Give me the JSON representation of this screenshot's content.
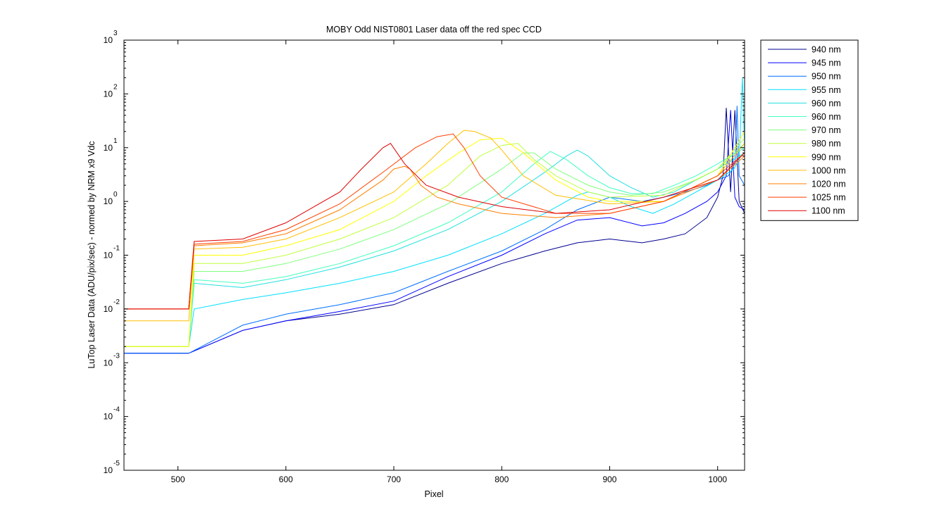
{
  "chart_data": {
    "type": "line",
    "title": "MOBY Odd NIST0801  Laser data off the red spec CCD",
    "xlabel": "Pixel",
    "ylabel": "LuTop Laser Data (ADU/pix/sec) - normed by NRM x9 Vdc",
    "xlim": [
      450,
      1025
    ],
    "ylim": [
      1e-05,
      1000
    ],
    "yscale": "log",
    "x_ticks": [
      500,
      600,
      700,
      800,
      900,
      1000
    ],
    "y_tick_exponents": [
      -5,
      -4,
      -3,
      -2,
      -1,
      0,
      1,
      2,
      3
    ],
    "y_tick_base": "10",
    "grid": false,
    "legend_position": "outside-right",
    "series": [
      {
        "name": "940 nm",
        "color": "#00008F",
        "x": [
          450,
          510,
          560,
          600,
          650,
          700,
          750,
          800,
          840,
          870,
          900,
          930,
          950,
          970,
          990,
          1000,
          1005,
          1008,
          1012,
          1016,
          1020,
          1025
        ],
        "y": [
          0.0015,
          0.0015,
          0.004,
          0.006,
          0.008,
          0.012,
          0.03,
          0.07,
          0.12,
          0.17,
          0.2,
          0.17,
          0.2,
          0.25,
          0.5,
          1.2,
          3,
          55,
          1.5,
          50,
          1,
          0.6
        ]
      },
      {
        "name": "945 nm",
        "color": "#0000FF",
        "x": [
          450,
          510,
          560,
          600,
          650,
          700,
          750,
          800,
          840,
          870,
          900,
          930,
          950,
          970,
          990,
          1000,
          1008,
          1012,
          1016,
          1020,
          1025
        ],
        "y": [
          0.0015,
          0.0015,
          0.004,
          0.006,
          0.009,
          0.014,
          0.04,
          0.1,
          0.25,
          0.45,
          0.5,
          0.35,
          0.4,
          0.6,
          1,
          1.5,
          3,
          50,
          1.2,
          0.8,
          0.7
        ]
      },
      {
        "name": "950 nm",
        "color": "#006FFF",
        "x": [
          450,
          510,
          560,
          600,
          650,
          700,
          750,
          800,
          840,
          870,
          900,
          930,
          950,
          970,
          990,
          1000,
          1010,
          1016,
          1018,
          1020,
          1025
        ],
        "y": [
          0.0015,
          0.0015,
          0.005,
          0.008,
          0.012,
          0.02,
          0.05,
          0.12,
          0.3,
          0.7,
          1.2,
          1,
          1.2,
          1.5,
          2,
          2.5,
          3,
          5,
          60,
          3,
          2
        ]
      },
      {
        "name": "955 nm",
        "color": "#00DFFF",
        "x": [
          450,
          510,
          515,
          560,
          600,
          650,
          700,
          750,
          800,
          840,
          870,
          880,
          900,
          920,
          940,
          960,
          980,
          1000,
          1015,
          1020,
          1023,
          1025
        ],
        "y": [
          0.002,
          0.002,
          0.01,
          0.015,
          0.02,
          0.03,
          0.05,
          0.1,
          0.25,
          0.6,
          1.3,
          1.5,
          1.2,
          0.8,
          0.6,
          0.9,
          1.5,
          2.5,
          4,
          6,
          200,
          10
        ]
      },
      {
        "name": "960 nm",
        "color": "#20DFDF",
        "x": [
          450,
          510,
          515,
          560,
          600,
          650,
          700,
          750,
          800,
          840,
          860,
          870,
          880,
          900,
          920,
          940,
          960,
          980,
          1000,
          1025
        ],
        "y": [
          0.002,
          0.002,
          0.03,
          0.025,
          0.035,
          0.06,
          0.12,
          0.3,
          1,
          3.5,
          7,
          9,
          7,
          3,
          1.8,
          1.2,
          1.5,
          2.5,
          4,
          8
        ]
      },
      {
        "name": "960 nm",
        "color": "#40FFBF",
        "x": [
          450,
          510,
          515,
          560,
          600,
          650,
          700,
          750,
          800,
          830,
          845,
          860,
          880,
          900,
          920,
          940,
          960,
          980,
          1000,
          1025
        ],
        "y": [
          0.002,
          0.002,
          0.035,
          0.03,
          0.04,
          0.07,
          0.15,
          0.4,
          1.5,
          5,
          8.5,
          6,
          3,
          1.8,
          1.4,
          1.4,
          2,
          3,
          5,
          10
        ]
      },
      {
        "name": "970 nm",
        "color": "#7FFF7F",
        "x": [
          450,
          510,
          515,
          560,
          600,
          650,
          700,
          750,
          800,
          820,
          830,
          850,
          880,
          900,
          920,
          950,
          980,
          1000,
          1025
        ],
        "y": [
          0.002,
          0.002,
          0.05,
          0.05,
          0.07,
          0.13,
          0.3,
          0.9,
          4,
          8,
          8,
          4,
          2,
          1.5,
          1.3,
          1.5,
          2.5,
          4,
          12
        ]
      },
      {
        "name": "980 nm",
        "color": "#BFFF3F",
        "x": [
          450,
          510,
          515,
          560,
          600,
          650,
          700,
          750,
          780,
          800,
          815,
          830,
          850,
          880,
          900,
          950,
          1000,
          1025
        ],
        "y": [
          0.002,
          0.002,
          0.07,
          0.07,
          0.1,
          0.2,
          0.5,
          2,
          7,
          11,
          12,
          6,
          3,
          1.5,
          1.2,
          1.3,
          4,
          15
        ]
      },
      {
        "name": "990 nm",
        "color": "#FFFF00",
        "x": [
          450,
          510,
          515,
          560,
          600,
          650,
          700,
          730,
          760,
          780,
          800,
          820,
          850,
          880,
          900,
          950,
          1000,
          1025
        ],
        "y": [
          0.002,
          0.002,
          0.1,
          0.1,
          0.15,
          0.3,
          1,
          3,
          8,
          14,
          15,
          8,
          2.5,
          1.2,
          1,
          1,
          3,
          20
        ]
      },
      {
        "name": "1000 nm",
        "color": "#FFBF00",
        "x": [
          450,
          510,
          515,
          560,
          600,
          650,
          700,
          730,
          750,
          765,
          775,
          790,
          800,
          820,
          850,
          900,
          950,
          1000,
          1025
        ],
        "y": [
          0.006,
          0.006,
          0.13,
          0.14,
          0.2,
          0.5,
          1.5,
          5,
          12,
          21,
          20,
          15,
          9,
          3,
          1.3,
          0.9,
          1,
          3,
          12
        ]
      },
      {
        "name": "1020 nm",
        "color": "#FF7F00",
        "x": [
          450,
          510,
          515,
          560,
          600,
          650,
          690,
          700,
          710,
          715,
          725,
          740,
          760,
          800,
          850,
          900,
          950,
          1000,
          1025
        ],
        "y": [
          0.01,
          0.01,
          0.15,
          0.17,
          0.25,
          0.7,
          2.5,
          4,
          4.5,
          4,
          2,
          1.2,
          0.9,
          0.6,
          0.5,
          0.6,
          1,
          2.5,
          7
        ]
      },
      {
        "name": "1025 nm",
        "color": "#FF3F00",
        "x": [
          450,
          510,
          515,
          560,
          600,
          650,
          690,
          720,
          740,
          755,
          765,
          780,
          800,
          850,
          900,
          950,
          1000,
          1025
        ],
        "y": [
          0.01,
          0.01,
          0.16,
          0.18,
          0.3,
          0.9,
          3.5,
          10,
          16,
          18,
          10,
          3,
          1.2,
          0.6,
          0.6,
          1,
          3,
          8
        ]
      },
      {
        "name": "1100 nm",
        "color": "#DF0000",
        "x": [
          450,
          510,
          515,
          560,
          600,
          650,
          670,
          690,
          697,
          710,
          730,
          760,
          800,
          850,
          900,
          950,
          1000,
          1025
        ],
        "y": [
          0.01,
          0.01,
          0.18,
          0.2,
          0.4,
          1.5,
          4,
          10,
          12,
          5,
          2,
          1.2,
          0.8,
          0.6,
          0.7,
          1.2,
          2.5,
          8
        ]
      }
    ]
  }
}
